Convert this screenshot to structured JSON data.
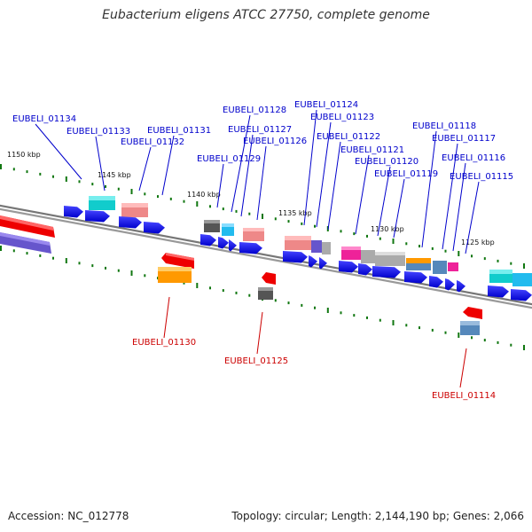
{
  "title": "Eubacterium eligens ATCC 27750, complete genome",
  "footer": {
    "accession": "Accession: NC_012778",
    "topology": "Topology: circular; Length: 2,144,190 bp; Genes: 2,066"
  },
  "scale_labels": [
    "1150 kbp",
    "1145 kbp",
    "1140 kbp",
    "1135 kbp",
    "1130 kbp",
    "1125 kbp"
  ],
  "labels_top": [
    "EUBELI_01134",
    "EUBELI_01133",
    "EUBELI_01132",
    "EUBELI_01131",
    "EUBELI_01129",
    "EUBELI_01128",
    "EUBELI_01127",
    "EUBELI_01126",
    "EUBELI_01124",
    "EUBELI_01123",
    "EUBELI_01122",
    "EUBELI_01121",
    "EUBELI_01120",
    "EUBELI_01119",
    "EUBELI_01118",
    "EUBELI_01117",
    "EUBELI_01116",
    "EUBELI_01115"
  ],
  "labels_bottom": [
    "EUBELI_01130",
    "EUBELI_01125",
    "EUBELI_01114"
  ],
  "colors": {
    "cds": "#0000ee",
    "backbone": "#808080",
    "label_top": "#0000cc",
    "label_bottom": "#cc0000",
    "tick": "#117711",
    "red": "#ee0000",
    "orange": "#ff9900",
    "salmon": "#ee8888",
    "cyan": "#11cccc",
    "purple": "#6655cc",
    "pink": "#ee2299",
    "gray": "#aaaaaa",
    "darkgray": "#555555",
    "steelblue": "#5588bb"
  }
}
